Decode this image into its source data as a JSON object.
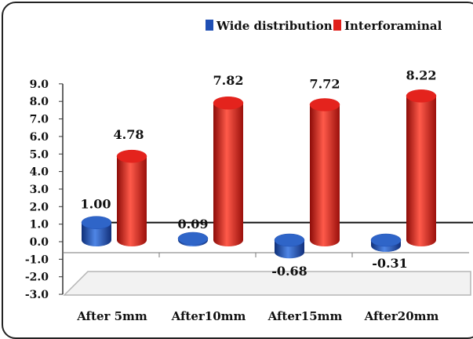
{
  "chart_data": {
    "type": "bar",
    "categories": [
      "After 5mm",
      "After10mm",
      "After15mm",
      "After20mm"
    ],
    "series": [
      {
        "name": "Wide distribution",
        "values": [
          1.0,
          0.09,
          -0.68,
          -0.31
        ],
        "labels": [
          "1.00",
          "0.09",
          "-0.68",
          "-0.31"
        ],
        "color": "#1f4fb4"
      },
      {
        "name": "Interforaminal",
        "values": [
          4.78,
          7.82,
          7.72,
          8.22
        ],
        "labels": [
          "4.78",
          "7.82",
          "7.72",
          "8.22"
        ],
        "color": "#e0201b"
      }
    ],
    "yticks": [
      "9.0",
      "8.0",
      "7.0",
      "6.0",
      "5.0",
      "4.0",
      "3.0",
      "2.0",
      "1.0",
      "0.0",
      "-1.0",
      "-2.0",
      "-3.0"
    ],
    "ylim": [
      -3,
      9
    ],
    "legend_position": "top-right",
    "shape": "cylinder"
  }
}
